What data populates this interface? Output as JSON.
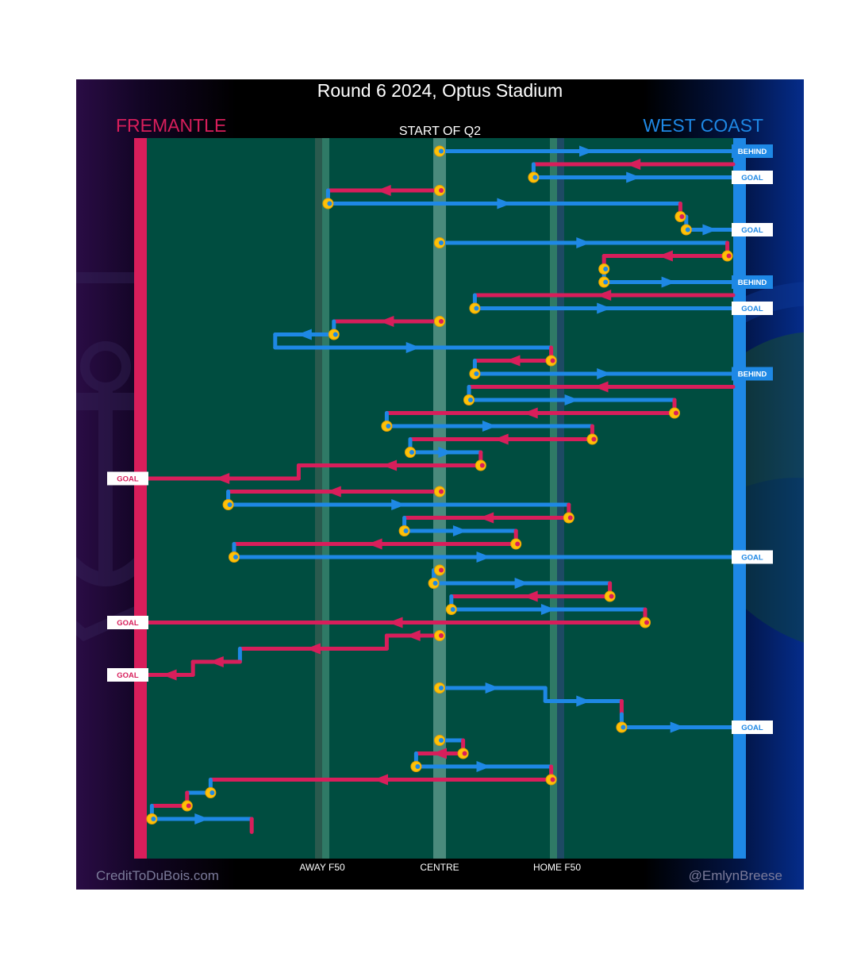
{
  "title": "Round 6 2024, Optus Stadium",
  "quarter_label": "START OF Q2",
  "credits": {
    "left": "CreditToDuBois.com",
    "right": "@EmlynBreese"
  },
  "colors": {
    "home": "#d81e5b",
    "away": "#1e88e5",
    "field": "#004d40",
    "marker": "#ffc107"
  },
  "chart_data": {
    "type": "line",
    "title": "Round 6 2024, Optus Stadium",
    "subtitle": "START OF Q2",
    "teams": {
      "home": {
        "name": "FREMANTLE",
        "color": "#d81e5b",
        "attacks": "left"
      },
      "away": {
        "name": "WEST COAST",
        "color": "#1e88e5",
        "attacks": "right"
      }
    },
    "xlabel": "",
    "ylabel": "",
    "x_axis": {
      "range": [
        -50,
        50
      ],
      "ticks": [
        {
          "x": -20,
          "label": "AWAY F50"
        },
        {
          "x": 0,
          "label": "CENTRE"
        },
        {
          "x": 20,
          "label": "HOME F50"
        }
      ]
    },
    "y_axis": {
      "range": [
        0,
        56
      ],
      "direction": "down",
      "unit": "chain step"
    },
    "grid": false,
    "centre_bounces": [
      1,
      5,
      7,
      15,
      28,
      35,
      37,
      45,
      49
    ],
    "series": [
      {
        "name": "c1",
        "points": [
          [
            0,
            1,
            "b"
          ],
          [
            50,
            1,
            "b"
          ]
        ],
        "outcome": "BEHIND",
        "outcome_team": "away"
      },
      {
        "name": "c2",
        "points": [
          [
            50,
            2,
            "h"
          ],
          [
            16,
            2,
            "h"
          ],
          [
            16,
            3,
            "b"
          ],
          [
            50,
            3,
            "b"
          ]
        ],
        "outcome": "GOAL",
        "outcome_team": "away"
      },
      {
        "name": "c3",
        "points": [
          [
            0,
            4,
            "h"
          ],
          [
            -19,
            4,
            "h"
          ],
          [
            -19,
            5,
            "b"
          ],
          [
            41,
            5,
            "b"
          ],
          [
            41,
            6,
            "h"
          ],
          [
            42,
            6,
            "h"
          ],
          [
            42,
            7,
            "b"
          ],
          [
            50,
            7,
            "b"
          ]
        ],
        "outcome": "GOAL",
        "outcome_team": "away"
      },
      {
        "name": "c4",
        "points": [
          [
            0,
            8,
            "b"
          ],
          [
            49,
            8,
            "b"
          ],
          [
            49,
            9,
            "h"
          ],
          [
            28,
            9,
            "h"
          ],
          [
            28,
            10,
            "h"
          ],
          [
            28,
            11,
            "b"
          ],
          [
            50,
            11,
            "b"
          ]
        ],
        "outcome": "BEHIND",
        "outcome_team": "away"
      },
      {
        "name": "c5",
        "points": [
          [
            50,
            12,
            "h"
          ],
          [
            6,
            12,
            "h"
          ],
          [
            6,
            13,
            "b"
          ],
          [
            50,
            13,
            "b"
          ]
        ],
        "outcome": "GOAL",
        "outcome_team": "away"
      },
      {
        "name": "c6",
        "points": [
          [
            0,
            14,
            "h"
          ],
          [
            -18,
            14,
            "h"
          ],
          [
            -18,
            15,
            "b"
          ],
          [
            -28,
            15,
            "b"
          ],
          [
            -28,
            16,
            "b"
          ],
          [
            19,
            16,
            "b"
          ],
          [
            19,
            17,
            "h"
          ],
          [
            6,
            17,
            "h"
          ],
          [
            6,
            18,
            "b"
          ],
          [
            50,
            18,
            "b"
          ]
        ],
        "outcome": "BEHIND",
        "outcome_team": "away"
      },
      {
        "name": "c7",
        "points": [
          [
            50,
            19,
            "h"
          ],
          [
            5,
            19,
            "h"
          ],
          [
            5,
            20,
            "b"
          ],
          [
            40,
            20,
            "b"
          ],
          [
            40,
            21,
            "h"
          ],
          [
            -9,
            21,
            "h"
          ],
          [
            -9,
            22,
            "b"
          ],
          [
            26,
            22,
            "b"
          ],
          [
            26,
            23,
            "h"
          ],
          [
            -5,
            23,
            "h"
          ],
          [
            -5,
            24,
            "b"
          ],
          [
            7,
            24,
            "b"
          ],
          [
            7,
            25,
            "h"
          ],
          [
            -24,
            25,
            "h"
          ],
          [
            -24,
            26,
            "h"
          ],
          [
            -50,
            26,
            "h"
          ]
        ],
        "outcome": "GOAL",
        "outcome_team": "home"
      },
      {
        "name": "c8",
        "points": [
          [
            0,
            27,
            "h"
          ],
          [
            -36,
            27,
            "h"
          ],
          [
            -36,
            28,
            "b"
          ],
          [
            22,
            28,
            "b"
          ],
          [
            22,
            29,
            "h"
          ],
          [
            -6,
            29,
            "h"
          ],
          [
            -6,
            30,
            "b"
          ],
          [
            13,
            30,
            "b"
          ],
          [
            13,
            31,
            "h"
          ],
          [
            -35,
            31,
            "h"
          ],
          [
            -35,
            32,
            "b"
          ],
          [
            50,
            32,
            "b"
          ]
        ],
        "outcome": "GOAL",
        "outcome_team": "away"
      },
      {
        "name": "c9",
        "points": [
          [
            0,
            33,
            "h"
          ],
          [
            -1,
            33,
            "h"
          ],
          [
            -1,
            34,
            "b"
          ],
          [
            29,
            34,
            "b"
          ],
          [
            29,
            35,
            "h"
          ],
          [
            2,
            35,
            "h"
          ],
          [
            2,
            36,
            "b"
          ],
          [
            35,
            36,
            "b"
          ],
          [
            35,
            37,
            "h"
          ],
          [
            -50,
            37,
            "h"
          ]
        ],
        "outcome": "GOAL",
        "outcome_team": "home"
      },
      {
        "name": "c10",
        "points": [
          [
            0,
            38,
            "h"
          ],
          [
            -9,
            38,
            "h"
          ],
          [
            -9,
            39,
            "h"
          ],
          [
            -34,
            39,
            "h"
          ],
          [
            -34,
            40,
            "b"
          ],
          [
            -34,
            40,
            "h"
          ],
          [
            -42,
            40,
            "h"
          ],
          [
            -42,
            41,
            "h"
          ],
          [
            -50,
            41,
            "h"
          ]
        ],
        "outcome": "GOAL",
        "outcome_team": "home"
      },
      {
        "name": "c11",
        "points": [
          [
            0,
            42,
            "b"
          ],
          [
            18,
            42,
            "b"
          ],
          [
            18,
            43,
            "b"
          ],
          [
            31,
            43,
            "b"
          ],
          [
            31,
            44,
            "h"
          ],
          [
            31,
            45,
            "b"
          ],
          [
            50,
            45,
            "b"
          ]
        ],
        "outcome": "GOAL",
        "outcome_team": "away"
      },
      {
        "name": "c12",
        "points": [
          [
            0,
            46,
            "b"
          ],
          [
            4,
            46,
            "b"
          ],
          [
            4,
            47,
            "h"
          ],
          [
            -4,
            47,
            "h"
          ],
          [
            -4,
            48,
            "b"
          ],
          [
            19,
            48,
            "b"
          ],
          [
            19,
            49,
            "h"
          ],
          [
            -39,
            49,
            "h"
          ],
          [
            -39,
            50,
            "b"
          ],
          [
            -43,
            50,
            "b"
          ],
          [
            -43,
            51,
            "h"
          ],
          [
            -49,
            51,
            "h"
          ],
          [
            -49,
            52,
            "b"
          ],
          [
            -32,
            52,
            "b"
          ],
          [
            -32,
            53,
            "h"
          ]
        ],
        "outcome": "",
        "outcome_team": ""
      }
    ]
  }
}
